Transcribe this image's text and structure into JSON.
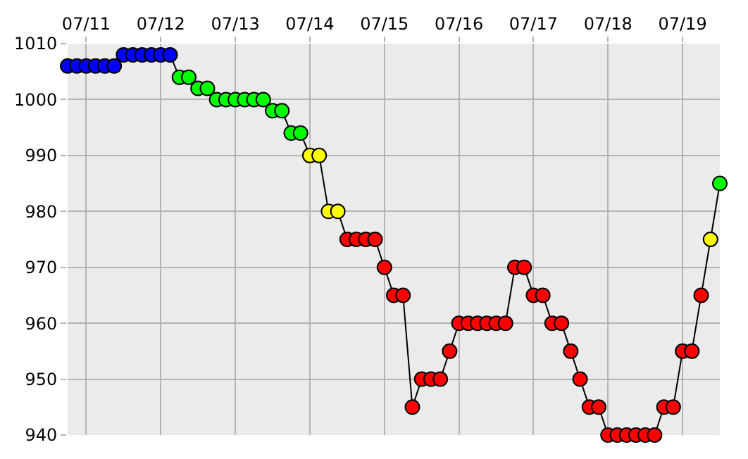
{
  "chart_data": {
    "type": "line",
    "marker": "circle",
    "line_style": "solid",
    "grid": true,
    "x": [
      "--07-10T18:00",
      "--07-10T21:00",
      "--07-11T00:00",
      "--07-11T03:00",
      "--07-11T06:00",
      "--07-11T09:00",
      "--07-11T12:00",
      "--07-11T15:00",
      "--07-11T18:00",
      "--07-11T21:00",
      "--07-12T00:00",
      "--07-12T03:00",
      "--07-12T06:00",
      "--07-12T09:00",
      "--07-12T12:00",
      "--07-12T15:00",
      "--07-12T18:00",
      "--07-12T21:00",
      "--07-13T00:00",
      "--07-13T03:00",
      "--07-13T06:00",
      "--07-13T09:00",
      "--07-13T12:00",
      "--07-13T15:00",
      "--07-13T18:00",
      "--07-13T21:00",
      "--07-14T00:00",
      "--07-14T03:00",
      "--07-14T06:00",
      "--07-14T09:00",
      "--07-14T12:00",
      "--07-14T15:00",
      "--07-14T18:00",
      "--07-14T21:00",
      "--07-15T00:00",
      "--07-15T03:00",
      "--07-15T06:00",
      "--07-15T09:00",
      "--07-15T12:00",
      "--07-15T15:00",
      "--07-15T18:00",
      "--07-15T21:00",
      "--07-16T00:00",
      "--07-16T03:00",
      "--07-16T06:00",
      "--07-16T09:00",
      "--07-16T12:00",
      "--07-16T15:00",
      "--07-16T18:00",
      "--07-16T21:00",
      "--07-17T00:00",
      "--07-17T03:00",
      "--07-17T06:00",
      "--07-17T09:00",
      "--07-17T12:00",
      "--07-17T15:00",
      "--07-17T18:00",
      "--07-17T21:00",
      "--07-18T00:00",
      "--07-18T03:00",
      "--07-18T06:00",
      "--07-18T09:00",
      "--07-18T12:00",
      "--07-18T15:00",
      "--07-18T18:00",
      "--07-18T21:00",
      "--07-19T00:00",
      "--07-19T03:00",
      "--07-19T06:00",
      "--07-19T09:00",
      "--07-19T12:00"
    ],
    "series": [
      {
        "color": "#000000",
        "values": [
          1006,
          1006,
          1006,
          1006,
          1006,
          1006,
          1008,
          1008,
          1008,
          1008,
          1008,
          1008,
          1004,
          1004,
          1002,
          1002,
          1000,
          1000,
          1000,
          1000,
          1000,
          1000,
          998,
          998,
          994,
          994,
          990,
          990,
          980,
          980,
          975,
          975,
          975,
          975,
          970,
          965,
          965,
          945,
          950,
          950,
          950,
          955,
          960,
          960,
          960,
          960,
          960,
          960,
          970,
          970,
          965,
          965,
          960,
          960,
          955,
          950,
          945,
          945,
          940,
          940,
          940,
          940,
          940,
          940,
          945,
          945,
          955,
          955,
          965,
          975,
          985
        ],
        "colors": [
          "#0000ff",
          "#0000ff",
          "#0000ff",
          "#0000ff",
          "#0000ff",
          "#0000ff",
          "#0000ff",
          "#0000ff",
          "#0000ff",
          "#0000ff",
          "#0000ff",
          "#0000ff",
          "#00ff00",
          "#00ff00",
          "#00ff00",
          "#00ff00",
          "#00ff00",
          "#00ff00",
          "#00ff00",
          "#00ff00",
          "#00ff00",
          "#00ff00",
          "#00ff00",
          "#00ff00",
          "#00ff00",
          "#00ff00",
          "#ffff00",
          "#ffff00",
          "#ffff00",
          "#ffff00",
          "#ff0000",
          "#ff0000",
          "#ff0000",
          "#ff0000",
          "#ff0000",
          "#ff0000",
          "#ff0000",
          "#ff0000",
          "#ff0000",
          "#ff0000",
          "#ff0000",
          "#ff0000",
          "#ff0000",
          "#ff0000",
          "#ff0000",
          "#ff0000",
          "#ff0000",
          "#ff0000",
          "#ff0000",
          "#ff0000",
          "#ff0000",
          "#ff0000",
          "#ff0000",
          "#ff0000",
          "#ff0000",
          "#ff0000",
          "#ff0000",
          "#ff0000",
          "#ff0000",
          "#ff0000",
          "#ff0000",
          "#ff0000",
          "#ff0000",
          "#ff0000",
          "#ff0000",
          "#ff0000",
          "#ff0000",
          "#ff0000",
          "#ff0000",
          "#ffff00",
          "#00ff00"
        ]
      }
    ],
    "xlim": [
      "--07-10T18:00",
      "--07-19T12:00"
    ],
    "xticks": [
      {
        "value": "--07-11",
        "label": "07/11"
      },
      {
        "value": "--07-12",
        "label": "07/12"
      },
      {
        "value": "--07-13",
        "label": "07/13"
      },
      {
        "value": "--07-14",
        "label": "07/14"
      },
      {
        "value": "--07-15",
        "label": "07/15"
      },
      {
        "value": "--07-16",
        "label": "07/16"
      },
      {
        "value": "--07-17",
        "label": "07/17"
      },
      {
        "value": "--07-18",
        "label": "07/18"
      },
      {
        "value": "--07-19",
        "label": "07/19"
      }
    ],
    "ylim": [
      940,
      1010
    ],
    "yticks": [
      940,
      950,
      960,
      970,
      980,
      990,
      1000,
      1010
    ]
  }
}
